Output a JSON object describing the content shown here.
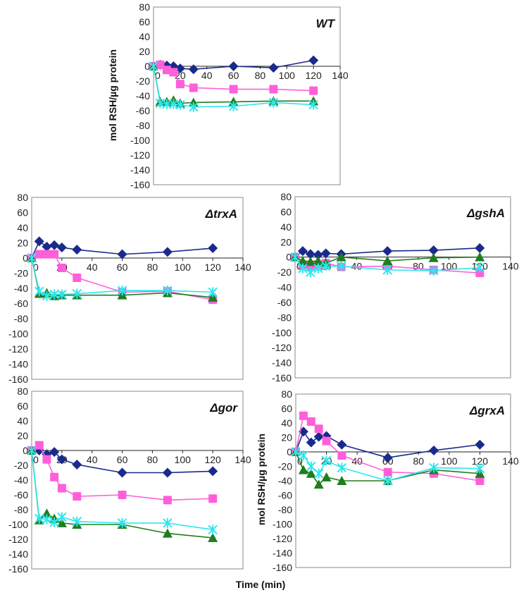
{
  "chart_data": {
    "type": "line",
    "ylabel": "mol RSH/µg protein",
    "xlabel": "Time (min)",
    "x": [
      0,
      5,
      10,
      15,
      20,
      30,
      60,
      90,
      120
    ],
    "xlim": [
      0,
      140
    ],
    "ylim": [
      -160,
      80
    ],
    "xticks": [
      0,
      20,
      40,
      60,
      80,
      100,
      120,
      140
    ],
    "yticks": [
      80,
      60,
      40,
      20,
      0,
      -20,
      -40,
      -60,
      -80,
      -100,
      -120,
      -140,
      -160
    ],
    "series_style": [
      {
        "color": "#1a2a8c",
        "marker": "diamond"
      },
      {
        "color": "#ff5fd8",
        "marker": "square"
      },
      {
        "color": "#1e7d1e",
        "marker": "triangle"
      },
      {
        "color": "#2ee6ee",
        "marker": "star"
      }
    ],
    "panels": [
      {
        "title": "WT",
        "series": [
          {
            "values": [
              0,
              2,
              1,
              0,
              -3,
              -4,
              0,
              -2,
              8
            ]
          },
          {
            "values": [
              0,
              2,
              -5,
              -8,
              -24,
              -29,
              -31,
              -31,
              -33
            ]
          },
          {
            "values": [
              0,
              -48,
              -48,
              -46,
              -50,
              -49,
              -48,
              -47,
              -47
            ]
          },
          {
            "values": [
              0,
              -50,
              -51,
              -51,
              -52,
              -55,
              -54,
              -49,
              -52
            ]
          }
        ]
      },
      {
        "title": "ΔtrxA",
        "series": [
          {
            "values": [
              0,
              22,
              15,
              17,
              14,
              11,
              5,
              8,
              13
            ]
          },
          {
            "values": [
              0,
              5,
              5,
              5,
              -13,
              -26,
              -45,
              -44,
              -55
            ]
          },
          {
            "values": [
              0,
              -47,
              -46,
              -50,
              -49,
              -49,
              -49,
              -46,
              -52
            ]
          },
          {
            "values": [
              0,
              -44,
              -50,
              -48,
              -48,
              -47,
              -43,
              -43,
              -45
            ]
          }
        ]
      },
      {
        "title": "ΔgshA",
        "series": [
          {
            "values": [
              0,
              8,
              4,
              3,
              5,
              4,
              8,
              9,
              12
            ]
          },
          {
            "values": [
              0,
              -10,
              -12,
              -10,
              -8,
              -13,
              -12,
              -17,
              -21
            ]
          },
          {
            "values": [
              0,
              -5,
              -6,
              -5,
              -8,
              0,
              -5,
              -1,
              0
            ]
          },
          {
            "values": [
              0,
              -15,
              -20,
              -15,
              -12,
              -12,
              -17,
              -18,
              -14
            ]
          }
        ]
      },
      {
        "title": "Δgor",
        "series": [
          {
            "values": [
              0,
              0,
              -5,
              -2,
              -12,
              -19,
              -30,
              -30,
              -28
            ]
          },
          {
            "values": [
              0,
              7,
              -12,
              -36,
              -51,
              -62,
              -60,
              -67,
              -65
            ]
          },
          {
            "values": [
              0,
              -94,
              -85,
              -92,
              -98,
              -100,
              -100,
              -112,
              -118
            ]
          },
          {
            "values": [
              0,
              -92,
              -93,
              -97,
              -90,
              -96,
              -98,
              -98,
              -107
            ]
          }
        ]
      },
      {
        "title": "ΔgrxA",
        "series": [
          {
            "values": [
              0,
              28,
              13,
              21,
              22,
              10,
              -8,
              2,
              10
            ]
          },
          {
            "values": [
              0,
              50,
              42,
              32,
              15,
              -5,
              -28,
              -30,
              -40
            ]
          },
          {
            "values": [
              0,
              -25,
              -30,
              -45,
              -35,
              -40,
              -40,
              -25,
              -30
            ]
          },
          {
            "values": [
              0,
              -5,
              -20,
              -30,
              -12,
              -22,
              -40,
              -22,
              -23
            ]
          }
        ]
      }
    ]
  }
}
